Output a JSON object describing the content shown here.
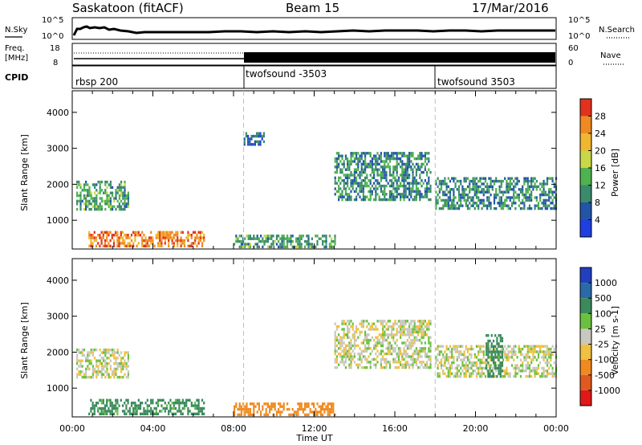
{
  "header": {
    "station": "Saskatoon (fitACF)",
    "beam": "Beam 15",
    "date": "17/Mar/2016"
  },
  "noise_panel": {
    "left_label": "N.Sky",
    "right_label": "N.Search",
    "left_ticks": [
      "10^5",
      "10^0"
    ],
    "right_ticks": [
      "10^5",
      "10^0"
    ]
  },
  "freq_panel": {
    "left_label_1": "Freq.",
    "left_label_2": "[MHz]",
    "right_label": "Nave",
    "left_ticks": [
      "18",
      "8"
    ],
    "right_ticks": [
      "60",
      "0"
    ]
  },
  "cpid_panel": {
    "label": "CPID",
    "segments": [
      {
        "name": "rbsp 200",
        "start_hour": 0.0
      },
      {
        "name": "twofsound -3503",
        "start_hour": 8.5
      },
      {
        "name": "twofsound 3503",
        "start_hour": 18.0
      }
    ]
  },
  "chart_data": [
    {
      "type": "heatmap",
      "quantity": "Power",
      "ylabel": "Slant Range [km]",
      "xlabel": "Time UT",
      "x_range_hours": [
        0,
        24
      ],
      "ylim": [
        200,
        4600
      ],
      "yticks": [
        "1000",
        "2000",
        "3000",
        "4000"
      ],
      "xtick_labels": [
        "00:00",
        "04:00",
        "08:00",
        "12:00",
        "16:00",
        "20:00",
        "00:00"
      ],
      "colorbar_label": "Power [dB]",
      "colorbar_ticks": [
        "4",
        "8",
        "12",
        "16",
        "20",
        "24",
        "28"
      ],
      "colorbar_colors": [
        "#1f3fe0",
        "#2255a8",
        "#3a8a6c",
        "#4eb24e",
        "#c9d848",
        "#f0b630",
        "#ef8a22",
        "#e2321e"
      ],
      "dashed_lines_hours": [
        8.5,
        18.0
      ],
      "echo_regions": [
        {
          "t0": 0.2,
          "t1": 2.8,
          "r0": 1300,
          "r1": 2100,
          "value": 12
        },
        {
          "t0": 0.8,
          "t1": 6.5,
          "r0": 250,
          "r1": 700,
          "value": 26
        },
        {
          "t0": 8.0,
          "t1": 13.0,
          "r0": 250,
          "r1": 600,
          "value": 12
        },
        {
          "t0": 13.0,
          "t1": 17.8,
          "r0": 1600,
          "r1": 2900,
          "value": 10
        },
        {
          "t0": 18.0,
          "t1": 24.0,
          "r0": 1300,
          "r1": 2200,
          "value": 10
        },
        {
          "t0": 8.5,
          "t1": 9.5,
          "r0": 3100,
          "r1": 3450,
          "value": 6
        }
      ]
    },
    {
      "type": "heatmap",
      "quantity": "Velocity",
      "ylabel": "Slant Range [km]",
      "xlabel": "Time UT",
      "x_range_hours": [
        0,
        24
      ],
      "ylim": [
        200,
        4600
      ],
      "yticks": [
        "1000",
        "2000",
        "3000",
        "4000"
      ],
      "xtick_labels": [
        "00:00",
        "04:00",
        "08:00",
        "12:00",
        "16:00",
        "20:00",
        "00:00"
      ],
      "colorbar_label": "Velocity [m s-1]",
      "colorbar_ticks": [
        "1000",
        "500",
        "100",
        "25",
        "-25",
        "-100",
        "-500",
        "-1000"
      ],
      "colorbar_colors": [
        "#2040c0",
        "#2a6aa8",
        "#3a8a5c",
        "#6cc040",
        "#c8c8c0",
        "#f0c040",
        "#f08a20",
        "#e05a20",
        "#e01818"
      ],
      "dashed_lines_hours": [
        8.5,
        18.0
      ],
      "echo_regions": [
        {
          "t0": 0.2,
          "t1": 2.8,
          "r0": 1300,
          "r1": 2100,
          "value": 0
        },
        {
          "t0": 0.8,
          "t1": 6.5,
          "r0": 250,
          "r1": 700,
          "value": 150
        },
        {
          "t0": 8.0,
          "t1": 13.0,
          "r0": 250,
          "r1": 600,
          "value": -200
        },
        {
          "t0": 13.0,
          "t1": 17.8,
          "r0": 1600,
          "r1": 2900,
          "value": 0
        },
        {
          "t0": 18.0,
          "t1": 24.0,
          "r0": 1300,
          "r1": 2200,
          "value": 0
        },
        {
          "t0": 20.5,
          "t1": 21.3,
          "r0": 1300,
          "r1": 2500,
          "value": 400
        }
      ]
    }
  ]
}
